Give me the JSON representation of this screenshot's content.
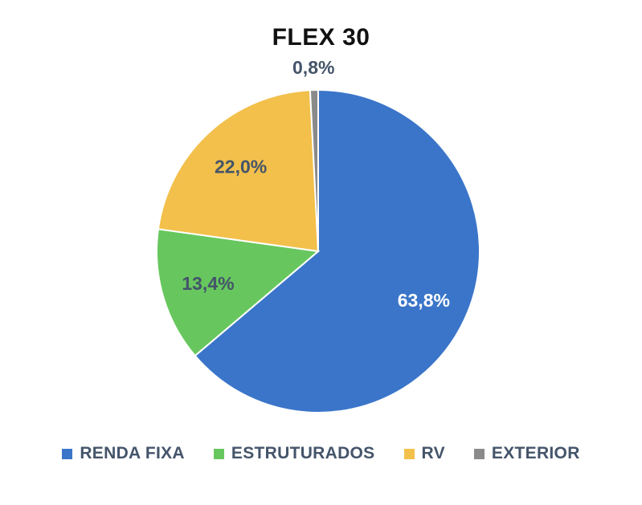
{
  "chart_data": {
    "type": "pie",
    "title": "FLEX 30",
    "categories": [
      "RENDA FIXA",
      "ESTRUTURADOS",
      "RV",
      "EXTERIOR"
    ],
    "values": [
      63.8,
      13.4,
      22.0,
      0.8
    ],
    "value_labels": [
      "63,8%",
      "13,4%",
      "22,0%",
      "0,8%"
    ],
    "colors": [
      "#3a75c9",
      "#67c75e",
      "#f2c04b",
      "#8a8a8a"
    ],
    "label_colors": [
      "#ffffff",
      "#44546a",
      "#44546a",
      "#44546a"
    ],
    "legend": "bottom"
  }
}
